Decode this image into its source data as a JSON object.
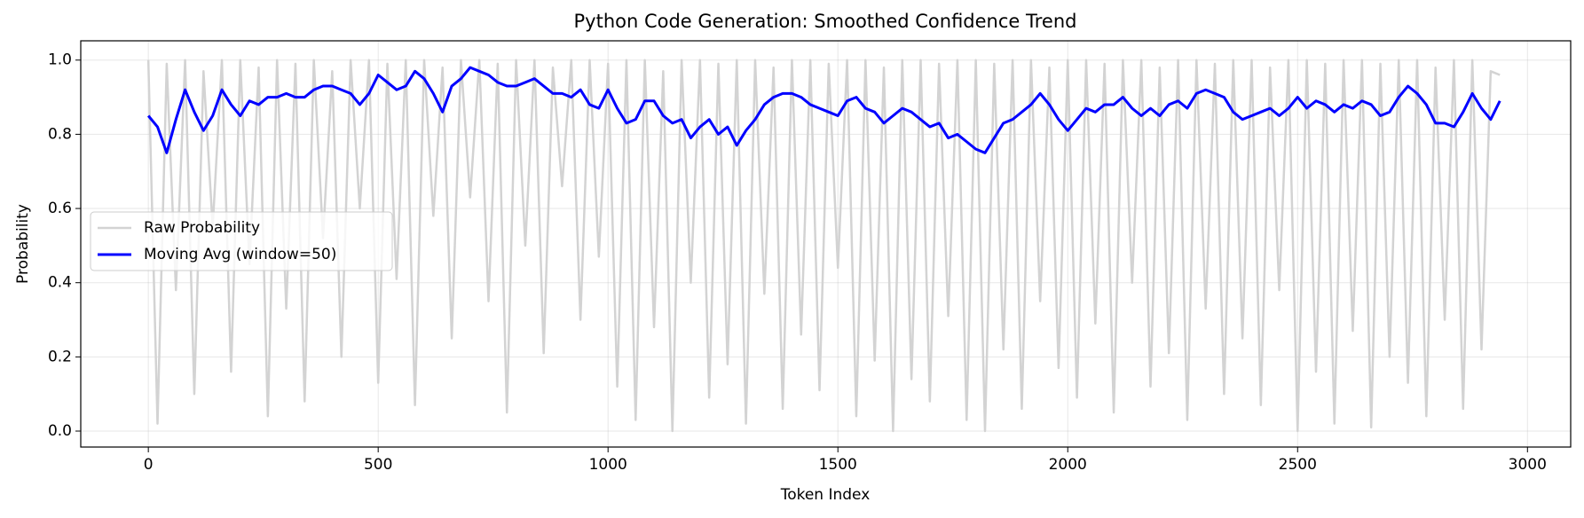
{
  "chart_data": {
    "type": "line",
    "title": "Python Code Generation: Smoothed Confidence Trend",
    "x_label": "Token Index",
    "y_label": "Probability",
    "x": [
      0,
      20,
      40,
      60,
      80,
      100,
      120,
      140,
      160,
      180,
      200,
      220,
      240,
      260,
      280,
      300,
      320,
      340,
      360,
      380,
      400,
      420,
      440,
      460,
      480,
      500,
      520,
      540,
      560,
      580,
      600,
      620,
      640,
      660,
      680,
      700,
      720,
      740,
      760,
      780,
      800,
      820,
      840,
      860,
      880,
      900,
      920,
      940,
      960,
      980,
      1000,
      1020,
      1040,
      1060,
      1080,
      1100,
      1120,
      1140,
      1160,
      1180,
      1200,
      1220,
      1240,
      1260,
      1280,
      1300,
      1320,
      1340,
      1360,
      1380,
      1400,
      1420,
      1440,
      1460,
      1480,
      1500,
      1520,
      1540,
      1560,
      1580,
      1600,
      1620,
      1640,
      1660,
      1680,
      1700,
      1720,
      1740,
      1760,
      1780,
      1800,
      1820,
      1840,
      1860,
      1880,
      1900,
      1920,
      1940,
      1960,
      1980,
      2000,
      2020,
      2040,
      2060,
      2080,
      2100,
      2120,
      2140,
      2160,
      2180,
      2200,
      2220,
      2240,
      2260,
      2280,
      2300,
      2320,
      2340,
      2360,
      2380,
      2400,
      2420,
      2440,
      2460,
      2480,
      2500,
      2520,
      2540,
      2560,
      2580,
      2600,
      2620,
      2640,
      2660,
      2680,
      2700,
      2720,
      2740,
      2760,
      2780,
      2800,
      2820,
      2840,
      2860,
      2880,
      2900,
      2920,
      2940
    ],
    "series": [
      {
        "name": "Raw Probability",
        "color": "#d3d3d3",
        "width": 2.5,
        "values": [
          1.0,
          0.02,
          0.99,
          0.38,
          1.0,
          0.1,
          0.97,
          0.55,
          1.0,
          0.16,
          1.0,
          0.45,
          0.98,
          0.04,
          1.0,
          0.33,
          0.99,
          0.08,
          1.0,
          0.52,
          0.97,
          0.2,
          1.0,
          0.6,
          1.0,
          0.13,
          0.99,
          0.41,
          1.0,
          0.07,
          1.0,
          0.58,
          0.98,
          0.25,
          1.0,
          0.63,
          1.0,
          0.35,
          0.99,
          0.05,
          1.0,
          0.5,
          1.0,
          0.21,
          0.98,
          0.66,
          1.0,
          0.3,
          1.0,
          0.47,
          0.99,
          0.12,
          1.0,
          0.03,
          1.0,
          0.28,
          0.97,
          0.0,
          1.0,
          0.4,
          1.0,
          0.09,
          0.99,
          0.18,
          1.0,
          0.02,
          1.0,
          0.37,
          0.98,
          0.06,
          1.0,
          0.26,
          1.0,
          0.11,
          0.99,
          0.44,
          1.0,
          0.04,
          1.0,
          0.19,
          0.98,
          0.0,
          1.0,
          0.14,
          1.0,
          0.08,
          0.99,
          0.31,
          1.0,
          0.03,
          1.0,
          0.0,
          0.99,
          0.22,
          1.0,
          0.06,
          1.0,
          0.35,
          0.98,
          0.17,
          1.0,
          0.09,
          1.0,
          0.29,
          0.99,
          0.05,
          1.0,
          0.4,
          1.0,
          0.12,
          0.98,
          0.21,
          1.0,
          0.03,
          1.0,
          0.33,
          0.99,
          0.1,
          1.0,
          0.25,
          1.0,
          0.07,
          0.98,
          0.38,
          1.0,
          0.0,
          1.0,
          0.16,
          0.99,
          0.02,
          1.0,
          0.27,
          1.0,
          0.01,
          0.99,
          0.2,
          1.0,
          0.13,
          1.0,
          0.04,
          0.98,
          0.3,
          1.0,
          0.06,
          1.0,
          0.22,
          0.97,
          0.96
        ]
      },
      {
        "name": "Moving Avg (window=50)",
        "color": "#0000ff",
        "width": 3,
        "values": [
          0.85,
          0.82,
          0.75,
          0.84,
          0.92,
          0.86,
          0.81,
          0.85,
          0.92,
          0.88,
          0.85,
          0.89,
          0.88,
          0.9,
          0.9,
          0.91,
          0.9,
          0.9,
          0.92,
          0.93,
          0.93,
          0.92,
          0.91,
          0.88,
          0.91,
          0.96,
          0.94,
          0.92,
          0.93,
          0.97,
          0.95,
          0.91,
          0.86,
          0.93,
          0.95,
          0.98,
          0.97,
          0.96,
          0.94,
          0.93,
          0.93,
          0.94,
          0.95,
          0.93,
          0.91,
          0.91,
          0.9,
          0.92,
          0.88,
          0.87,
          0.92,
          0.87,
          0.83,
          0.84,
          0.89,
          0.89,
          0.85,
          0.83,
          0.84,
          0.79,
          0.82,
          0.84,
          0.8,
          0.82,
          0.77,
          0.81,
          0.84,
          0.88,
          0.9,
          0.91,
          0.91,
          0.9,
          0.88,
          0.87,
          0.86,
          0.85,
          0.89,
          0.9,
          0.87,
          0.86,
          0.83,
          0.85,
          0.87,
          0.86,
          0.84,
          0.82,
          0.83,
          0.79,
          0.8,
          0.78,
          0.76,
          0.75,
          0.79,
          0.83,
          0.84,
          0.86,
          0.88,
          0.91,
          0.88,
          0.84,
          0.81,
          0.84,
          0.87,
          0.86,
          0.88,
          0.88,
          0.9,
          0.87,
          0.85,
          0.87,
          0.85,
          0.88,
          0.89,
          0.87,
          0.91,
          0.92,
          0.91,
          0.9,
          0.86,
          0.84,
          0.85,
          0.86,
          0.87,
          0.85,
          0.87,
          0.9,
          0.87,
          0.89,
          0.88,
          0.86,
          0.88,
          0.87,
          0.89,
          0.88,
          0.85,
          0.86,
          0.9,
          0.93,
          0.91,
          0.88,
          0.83,
          0.83,
          0.82,
          0.86,
          0.91,
          0.87,
          0.84,
          0.89
        ]
      }
    ],
    "xlim": [
      -147,
      3094
    ],
    "ylim": [
      -0.043,
      1.052
    ],
    "xticks": [
      0,
      500,
      1000,
      1500,
      2000,
      2500,
      3000
    ],
    "yticks": [
      {
        "value": 0,
        "label": "0.0"
      },
      0.2,
      0.4,
      0.6,
      0.8,
      {
        "value": 1,
        "label": "1.0"
      }
    ],
    "grid": true,
    "legend": "center left"
  }
}
